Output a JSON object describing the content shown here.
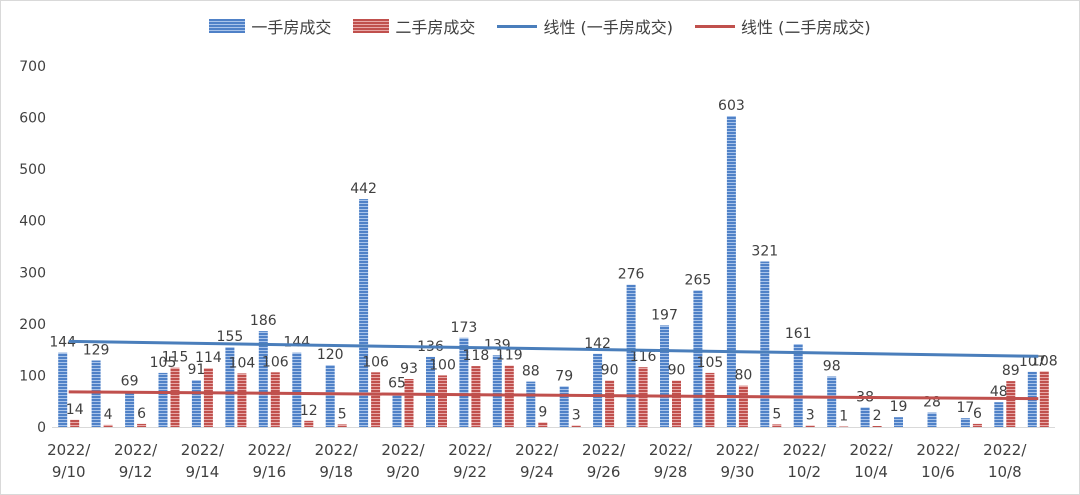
{
  "chart_data": {
    "type": "bar",
    "categories": [
      "2022/9/10",
      "2022/9/11",
      "2022/9/12",
      "2022/9/13",
      "2022/9/14",
      "2022/9/15",
      "2022/9/16",
      "2022/9/17",
      "2022/9/18",
      "2022/9/19",
      "2022/9/20",
      "2022/9/21",
      "2022/9/22",
      "2022/9/23",
      "2022/9/24",
      "2022/9/25",
      "2022/9/26",
      "2022/9/27",
      "2022/9/28",
      "2022/9/29",
      "2022/9/30",
      "2022/10/1",
      "2022/10/2",
      "2022/10/3",
      "2022/10/4",
      "2022/10/5",
      "2022/10/6",
      "2022/10/7",
      "2022/10/8",
      "2022/10/9"
    ],
    "tick_labels": [
      {
        "line1": "2022/",
        "line2": "9/10",
        "index": 0
      },
      {
        "line1": "2022/",
        "line2": "9/12",
        "index": 2
      },
      {
        "line1": "2022/",
        "line2": "9/14",
        "index": 4
      },
      {
        "line1": "2022/",
        "line2": "9/16",
        "index": 6
      },
      {
        "line1": "2022/",
        "line2": "9/18",
        "index": 8
      },
      {
        "line1": "2022/",
        "line2": "9/20",
        "index": 10
      },
      {
        "line1": "2022/",
        "line2": "9/22",
        "index": 12
      },
      {
        "line1": "2022/",
        "line2": "9/24",
        "index": 14
      },
      {
        "line1": "2022/",
        "line2": "9/26",
        "index": 16
      },
      {
        "line1": "2022/",
        "line2": "9/28",
        "index": 18
      },
      {
        "line1": "2022/",
        "line2": "9/30",
        "index": 20
      },
      {
        "line1": "2022/",
        "line2": "10/2",
        "index": 22
      },
      {
        "line1": "2022/",
        "line2": "10/4",
        "index": 24
      },
      {
        "line1": "2022/",
        "line2": "10/6",
        "index": 26
      },
      {
        "line1": "2022/",
        "line2": "10/8",
        "index": 28
      }
    ],
    "series": [
      {
        "name": "一手房成交",
        "color": "#4472c4",
        "values": [
          144,
          129,
          69,
          105,
          91,
          155,
          186,
          144,
          120,
          442,
          65,
          136,
          173,
          139,
          88,
          79,
          142,
          276,
          197,
          265,
          603,
          321,
          161,
          98,
          38,
          19,
          28,
          17,
          48,
          107
        ]
      },
      {
        "name": "二手房成交",
        "color": "#c0504d",
        "values": [
          14,
          4,
          6,
          115,
          114,
          104,
          106,
          12,
          5,
          106,
          93,
          100,
          118,
          119,
          9,
          3,
          90,
          116,
          90,
          105,
          80,
          5,
          3,
          1,
          2,
          0,
          0,
          6,
          89,
          108
        ]
      }
    ],
    "trendlines": [
      {
        "name": "线性 (一手房成交)",
        "color": "#4a7ebb",
        "start": 166,
        "end": 137
      },
      {
        "name": "线性 (二手房成交)",
        "color": "#c0504d",
        "start": 68,
        "end": 55
      }
    ],
    "yticks": [
      0,
      100,
      200,
      300,
      400,
      500,
      600,
      700
    ],
    "ylim": [
      0,
      700
    ],
    "grid": false,
    "legend": "top"
  }
}
